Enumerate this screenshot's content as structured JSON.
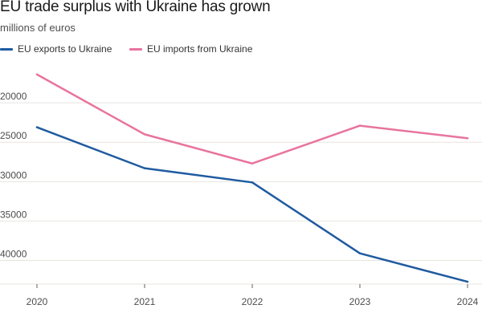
{
  "chart_data": {
    "type": "line",
    "title": "EU trade surplus with Ukraine has grown",
    "subtitle": "millions of euros",
    "x": [
      "2020",
      "2021",
      "2022",
      "2023",
      "2024"
    ],
    "ylim": [
      15000,
      43000
    ],
    "y_inverted": true,
    "y_ticks": [
      "20000",
      "25000",
      "30000",
      "35000",
      "40000"
    ],
    "grid": "horizontal",
    "legend": "top-left",
    "series": [
      {
        "name": "EU exports to Ukraine",
        "color": "#1f5ba0",
        "values": [
          23100,
          28300,
          30100,
          39100,
          42700
        ]
      },
      {
        "name": "EU imports from Ukraine",
        "color": "#e8749e",
        "values": [
          16400,
          24000,
          27700,
          22900,
          24500
        ]
      }
    ]
  }
}
